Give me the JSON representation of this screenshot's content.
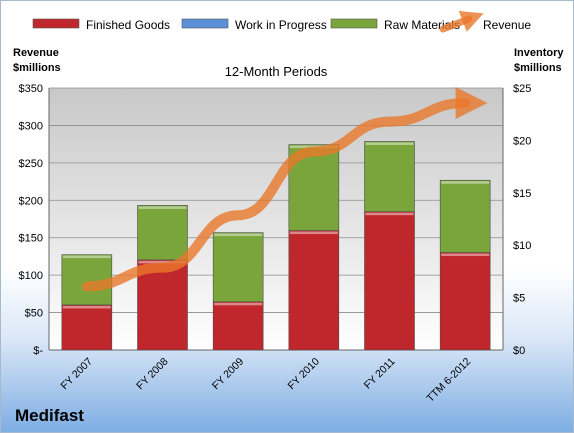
{
  "chart_data": {
    "type": "bar",
    "stacked": true,
    "title": "12-Month Periods",
    "categories": [
      "FY 2007",
      "FY 2008",
      "FY 2009",
      "FY 2010",
      "FY 2011",
      "TTM 6-2012"
    ],
    "series": [
      {
        "name": "Finished Goods",
        "axis": "right",
        "color": "#c0272d",
        "values": [
          4.3,
          8.6,
          4.6,
          11.4,
          13.2,
          9.3
        ]
      },
      {
        "name": "Work in Progress",
        "axis": "right",
        "color": "#5b8fd6",
        "values": [
          0,
          0,
          0,
          0,
          0,
          0
        ]
      },
      {
        "name": "Raw Materials",
        "axis": "right",
        "color": "#79a53b",
        "values": [
          4.8,
          5.2,
          6.6,
          8.2,
          6.7,
          6.9
        ]
      },
      {
        "name": "Revenue",
        "axis": "left",
        "type": "line",
        "color": "#e8782a",
        "values": [
          85,
          110,
          180,
          265,
          305,
          330
        ]
      }
    ],
    "left_axis": {
      "label_line1": "Revenue",
      "label_line2": "$millions",
      "min": 0,
      "max": 350,
      "step": 50,
      "ticks": [
        "$-",
        "$50",
        "$100",
        "$150",
        "$200",
        "$250",
        "$300",
        "$350"
      ]
    },
    "right_axis": {
      "label_line1": "Inventory",
      "label_line2": "$millions",
      "min": 0,
      "max": 25,
      "step": 5,
      "ticks": [
        "$0",
        "$5",
        "$10",
        "$15",
        "$20",
        "$25"
      ]
    },
    "legend_position": "top",
    "grid": true
  },
  "company": "Medifast"
}
